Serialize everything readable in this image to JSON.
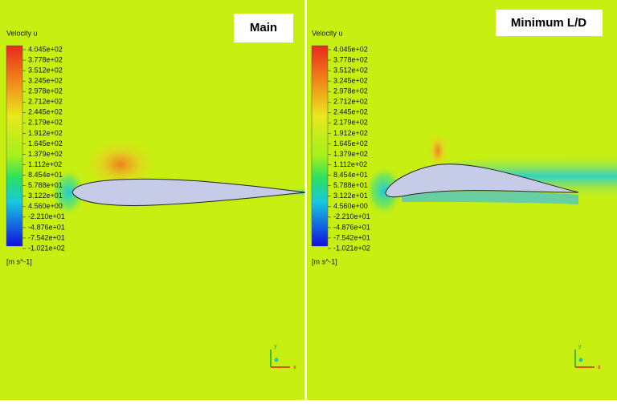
{
  "panels": [
    {
      "title": "Main"
    },
    {
      "title": "Minimum L/D"
    }
  ],
  "legend": {
    "title": "Velocity u",
    "labels": [
      "4.045e+02",
      "3.778e+02",
      "3.512e+02",
      "3.245e+02",
      "2.978e+02",
      "2.712e+02",
      "2.445e+02",
      "2.179e+02",
      "1.912e+02",
      "1.645e+02",
      "1.379e+02",
      "1.112e+02",
      "8.454e+01",
      "5.788e+01",
      "3.122e+01",
      "4.560e+00",
      "-2.210e+01",
      "-4.876e+01",
      "-7.542e+01",
      "-1.021e+02"
    ],
    "unit": "[m s^-1]"
  },
  "axes": {
    "x": "x",
    "y": "y"
  }
}
